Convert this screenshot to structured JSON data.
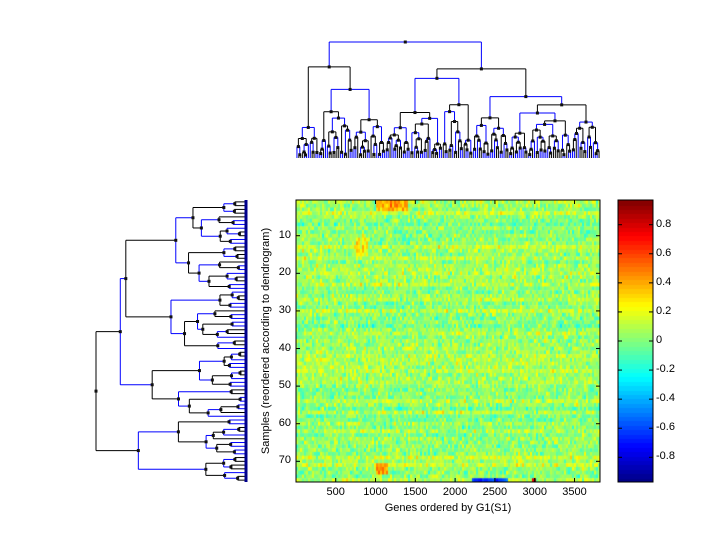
{
  "chart_data": [
    {
      "type": "heatmap",
      "title": "",
      "xlabel": "Genes ordered by G1(S1)",
      "ylabel": "Samples (reordered according to dendrogram)",
      "xlim": [
        1,
        3820
      ],
      "ylim": [
        0.5,
        75.5
      ],
      "n_rows": 75,
      "xticks": [
        500,
        1000,
        1500,
        2000,
        2500,
        3000,
        3500
      ],
      "yticks": [
        10,
        20,
        30,
        40,
        50,
        60,
        70
      ],
      "colormap": "jet",
      "value_summary": {
        "typical_range": [
          -0.2,
          0.2
        ],
        "background_mean": 0.05
      },
      "notable_regions": [
        {
          "rows": [
            1,
            3
          ],
          "genes": [
            1000,
            1400
          ],
          "value": 0.4
        },
        {
          "rows": [
            11,
            15
          ],
          "genes": [
            750,
            900
          ],
          "value": 0.25
        },
        {
          "rows": [
            71,
            73
          ],
          "genes": [
            1000,
            1150
          ],
          "value": 0.45
        },
        {
          "rows": [
            75,
            75
          ],
          "genes": [
            2200,
            2650
          ],
          "value": -0.6
        },
        {
          "rows": [
            75,
            75
          ],
          "genes": [
            2960,
            3000
          ],
          "value": 0.9
        }
      ]
    },
    {
      "type": "colorbar",
      "clim": [
        -0.97,
        0.97
      ],
      "ticks": [
        "0.8",
        "0.6",
        "0.4",
        "0.2",
        "0",
        "-0.2",
        "-0.4",
        "-0.6",
        "-0.8"
      ],
      "tick_values": [
        0.8,
        0.6,
        0.4,
        0.2,
        0,
        -0.2,
        -0.4,
        -0.6,
        -0.8
      ]
    },
    {
      "type": "dendrogram",
      "orientation": "left",
      "leaves": 75,
      "colors": [
        "#000000",
        "#0000ff"
      ]
    },
    {
      "type": "dendrogram",
      "orientation": "top",
      "leaves": 160,
      "colors": [
        "#000000",
        "#0000ff"
      ]
    }
  ]
}
